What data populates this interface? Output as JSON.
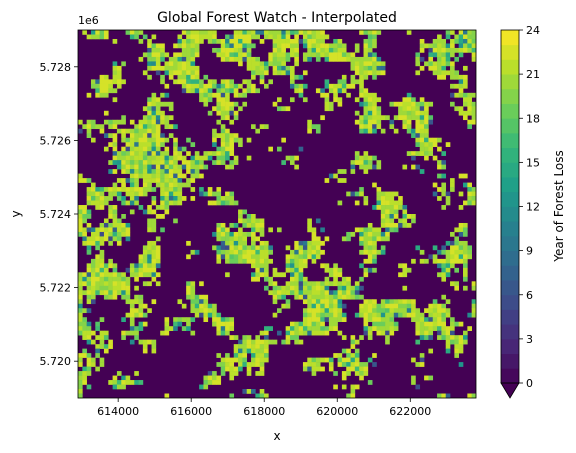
{
  "chart_data": {
    "type": "heatmap",
    "title": "Global Forest Watch - Interpolated",
    "xlabel": "x",
    "ylabel": "y",
    "y_offset_label": "1e6",
    "xlim": [
      612900,
      623800
    ],
    "ylim": [
      5719000,
      5729000
    ],
    "x_ticks": [
      614000,
      616000,
      618000,
      620000,
      622000
    ],
    "x_tick_labels": [
      "614000",
      "616000",
      "618000",
      "620000",
      "622000"
    ],
    "y_ticks": [
      5720000,
      5722000,
      5724000,
      5726000,
      5728000
    ],
    "y_tick_labels": [
      "5.720",
      "5.722",
      "5.724",
      "5.726",
      "5.728"
    ],
    "colorbar": {
      "label": "Year of Forest Loss",
      "colormap": "viridis",
      "range": [
        0,
        24
      ],
      "levels_step": 1,
      "extend": "min",
      "ticks": [
        0,
        3,
        6,
        9,
        12,
        15,
        18,
        21,
        24
      ],
      "tick_labels": [
        "0",
        "3",
        "6",
        "9",
        "12",
        "15",
        "18",
        "21",
        "24"
      ]
    },
    "grid": false,
    "background_value": 0,
    "dominant_loss_values": [
      20,
      21,
      22
    ]
  }
}
